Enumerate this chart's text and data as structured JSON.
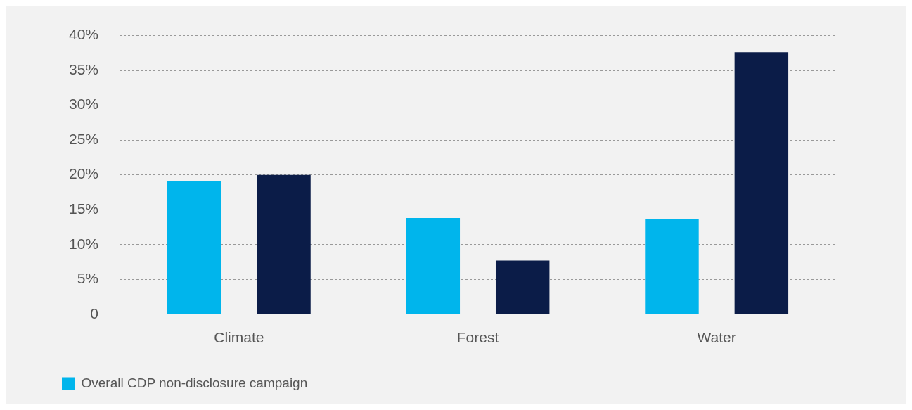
{
  "chart_data": {
    "type": "bar",
    "categories": [
      "Climate",
      "Forest",
      "Water"
    ],
    "series": [
      {
        "name": "Overall CDP non-disclosure campaign",
        "color": "#00b5ec",
        "values": [
          19.1,
          13.8,
          13.7
        ]
      },
      {
        "color": "#0b1c48",
        "values": [
          20,
          7.7,
          37.6
        ]
      }
    ],
    "ylim": [
      0,
      40
    ],
    "yticks": [
      {
        "value": 0,
        "label": "0"
      },
      {
        "value": 5,
        "label": "5%"
      },
      {
        "value": 10,
        "label": "10%"
      },
      {
        "value": 15,
        "label": "15%"
      },
      {
        "value": 20,
        "label": "20%"
      },
      {
        "value": 25,
        "label": "25%"
      },
      {
        "value": 30,
        "label": "30%"
      },
      {
        "value": 35,
        "label": "35%"
      },
      {
        "value": 40,
        "label": "40%"
      }
    ],
    "grid": "y",
    "legend": "bottom left"
  }
}
